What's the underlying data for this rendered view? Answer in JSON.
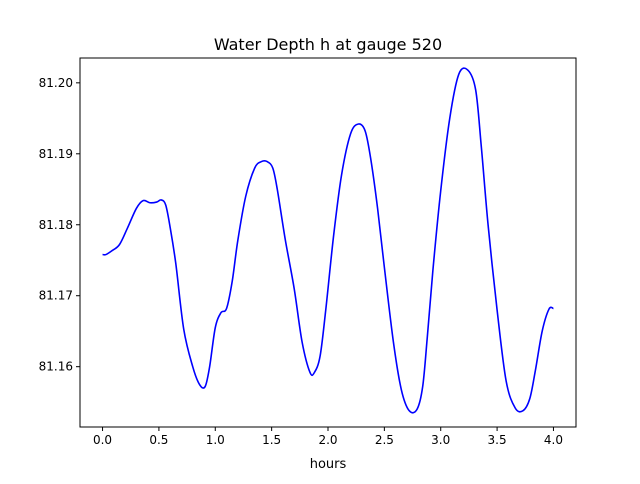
{
  "chart_data": {
    "type": "line",
    "title": "Water Depth h at gauge 520",
    "xlabel": "hours",
    "ylabel": "",
    "xlim": [
      -0.2,
      4.2
    ],
    "ylim": [
      81.1515,
      81.2035
    ],
    "grid": false,
    "xticks": [
      0.0,
      0.5,
      1.0,
      1.5,
      2.0,
      2.5,
      3.0,
      3.5,
      4.0
    ],
    "xtick_labels": [
      "0.0",
      "0.5",
      "1.0",
      "1.5",
      "2.0",
      "2.5",
      "3.0",
      "3.5",
      "4.0"
    ],
    "yticks": [
      81.16,
      81.17,
      81.18,
      81.19,
      81.2
    ],
    "ytick_labels": [
      "81.16",
      "81.17",
      "81.18",
      "81.19",
      "81.20"
    ],
    "series": [
      {
        "color": "#0000ff",
        "x": [
          0.0,
          0.03,
          0.08,
          0.15,
          0.22,
          0.3,
          0.36,
          0.42,
          0.48,
          0.52,
          0.56,
          0.6,
          0.65,
          0.72,
          0.8,
          0.86,
          0.91,
          0.95,
          1.0,
          1.05,
          1.1,
          1.15,
          1.2,
          1.27,
          1.35,
          1.41,
          1.46,
          1.51,
          1.55,
          1.62,
          1.7,
          1.77,
          1.84,
          1.88,
          1.93,
          1.98,
          2.05,
          2.12,
          2.2,
          2.27,
          2.33,
          2.38,
          2.44,
          2.5,
          2.58,
          2.65,
          2.72,
          2.79,
          2.84,
          2.88,
          2.93,
          3.0,
          3.08,
          3.16,
          3.24,
          3.31,
          3.36,
          3.42,
          3.5,
          3.58,
          3.66,
          3.73,
          3.79,
          3.84,
          3.9,
          3.96,
          4.0
        ],
        "y": [
          81.1758,
          81.1758,
          81.1763,
          81.1772,
          81.1795,
          81.1823,
          81.1834,
          81.1831,
          81.1832,
          81.1835,
          81.1828,
          81.1796,
          81.1745,
          81.1653,
          81.16,
          81.1575,
          81.1572,
          81.16,
          81.1655,
          81.1676,
          81.1682,
          81.172,
          81.1778,
          81.184,
          81.188,
          81.1889,
          81.1889,
          81.188,
          81.185,
          81.178,
          81.171,
          81.1635,
          81.1592,
          81.1592,
          81.1615,
          81.168,
          81.1785,
          81.187,
          81.1928,
          81.1942,
          81.1932,
          81.1892,
          81.1823,
          81.174,
          81.1635,
          81.1568,
          81.1538,
          81.154,
          81.1572,
          81.164,
          81.1735,
          81.1848,
          81.195,
          81.2012,
          81.2018,
          81.199,
          81.191,
          81.18,
          81.168,
          81.158,
          81.1542,
          81.1538,
          81.1555,
          81.1595,
          81.165,
          81.1681,
          81.1682
        ]
      }
    ]
  }
}
